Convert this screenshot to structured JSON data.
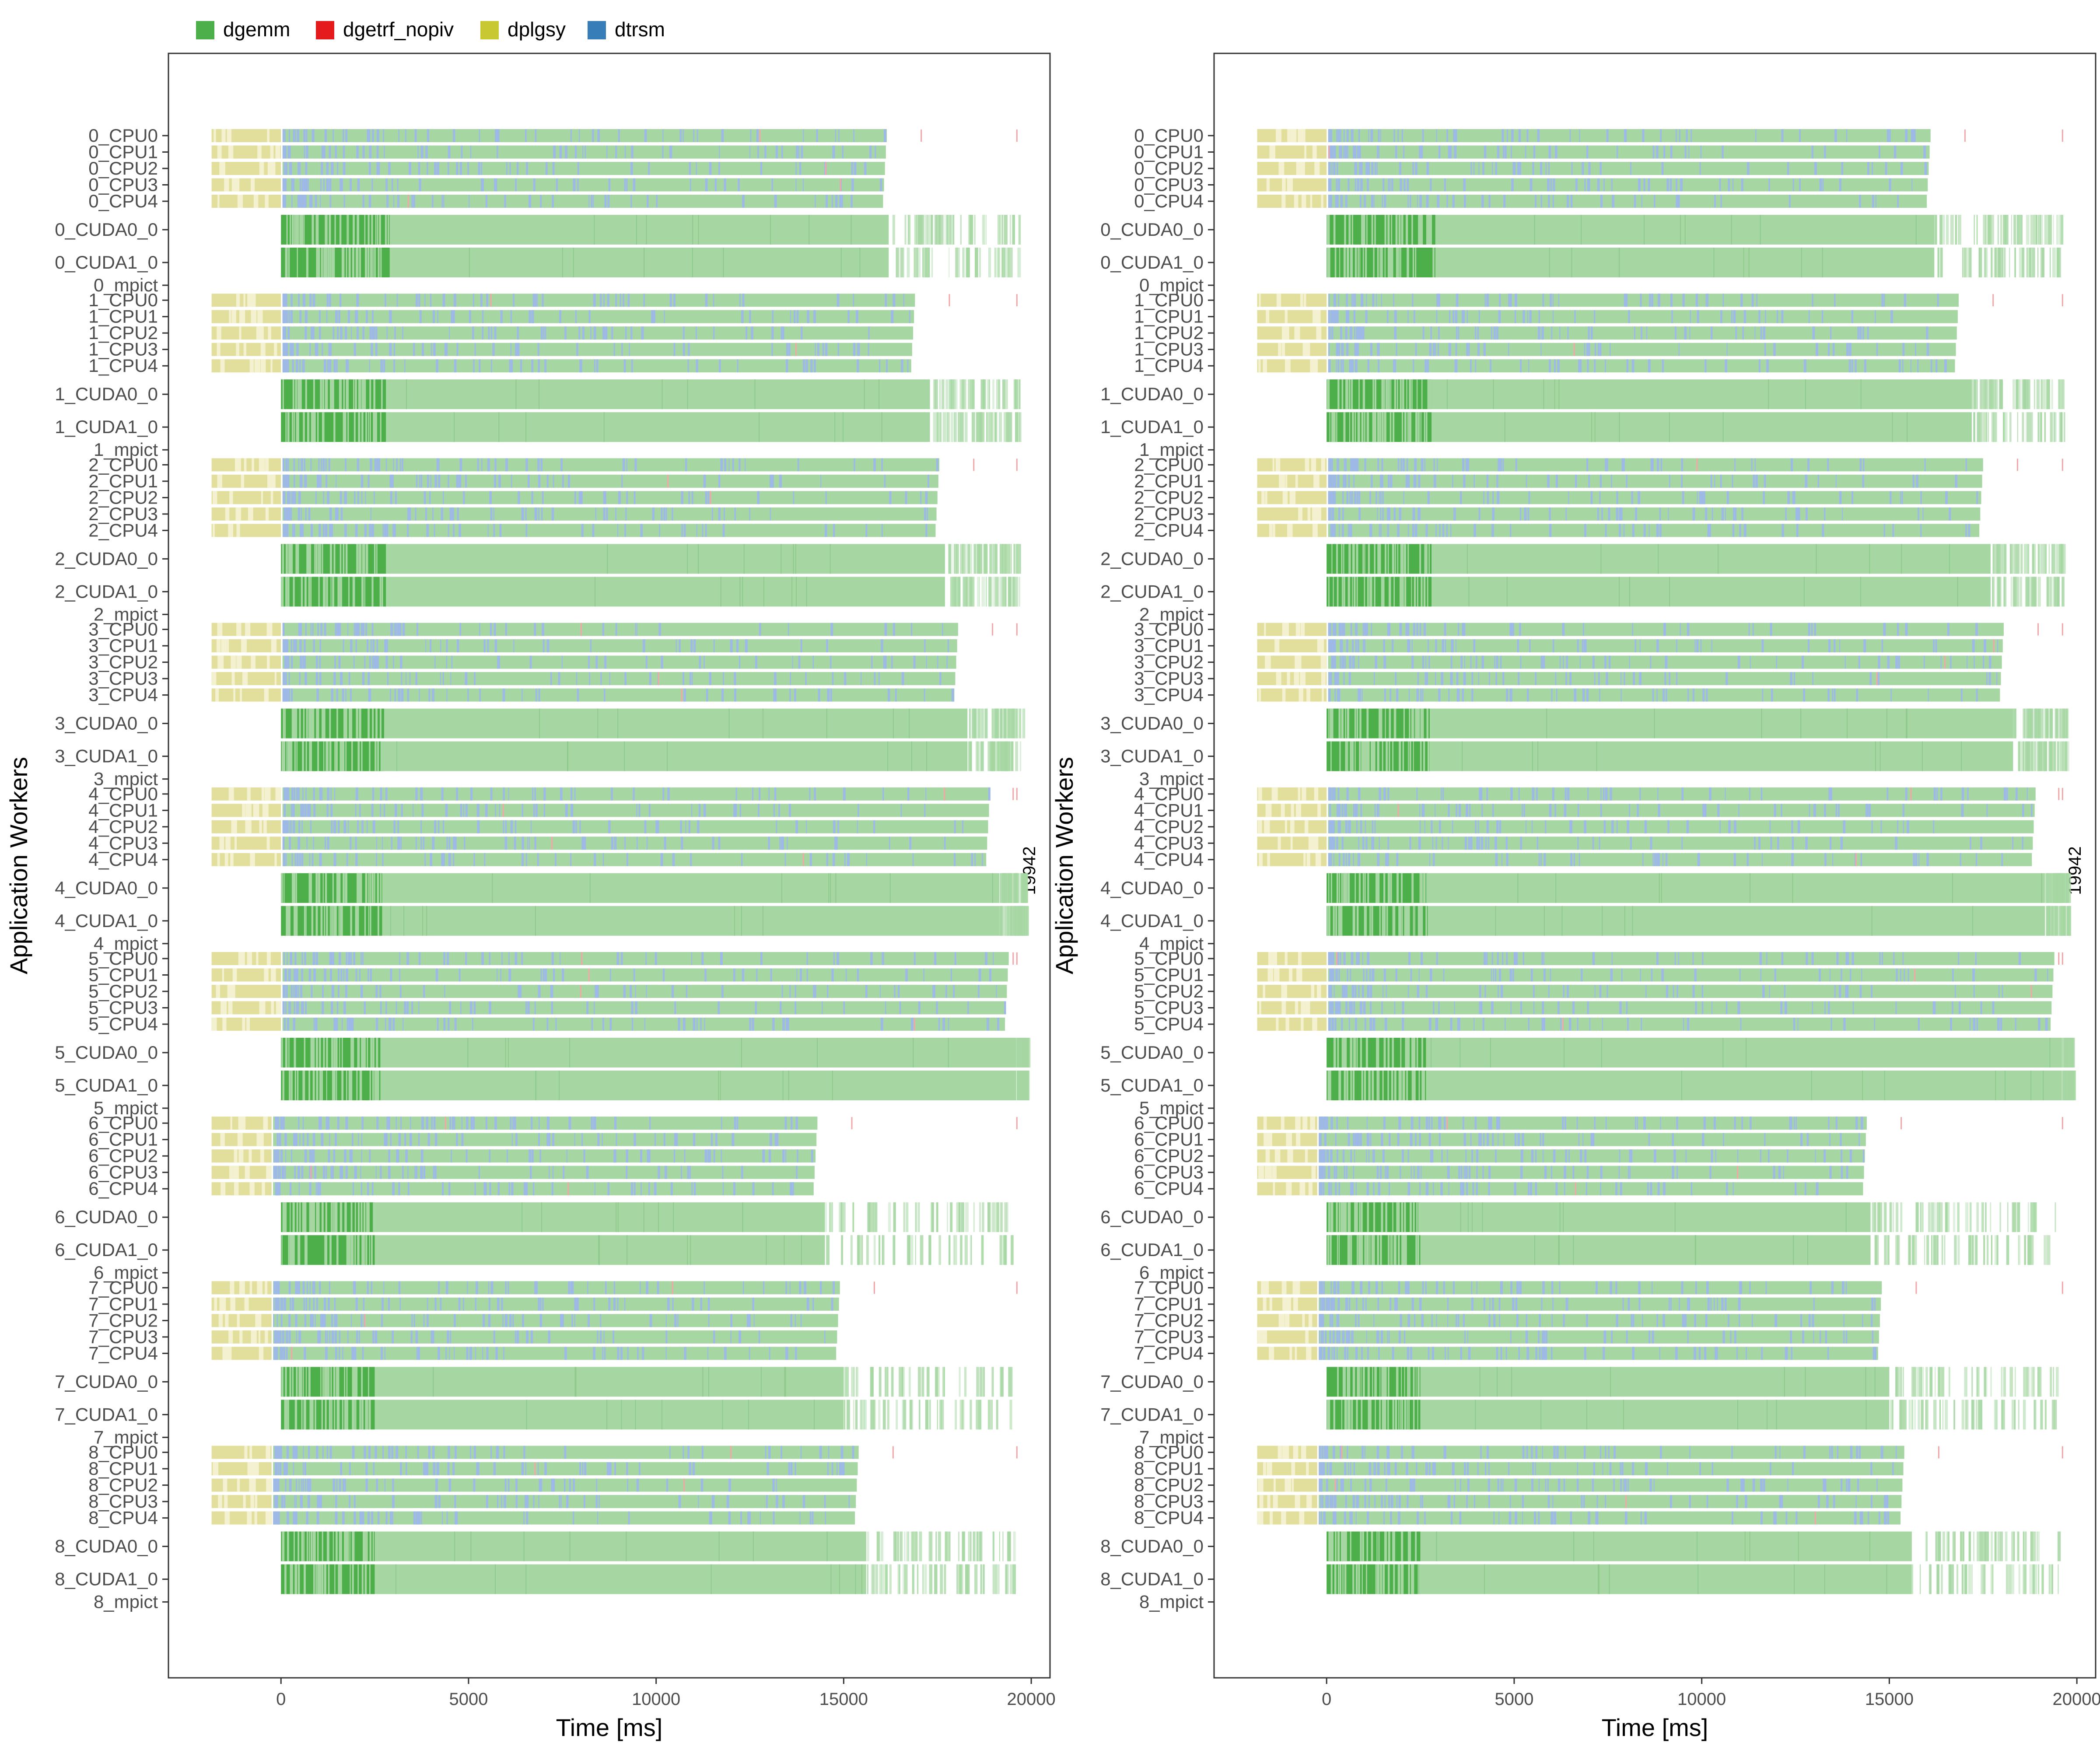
{
  "legend": {
    "items": [
      {
        "name": "dgemm",
        "color": "#4daf4a"
      },
      {
        "name": "dgetrf_nopiv",
        "color": "#e41a1c"
      },
      {
        "name": "dplgsy",
        "color": "#c8c832"
      },
      {
        "name": "dtrsm",
        "color": "#377eb8"
      }
    ]
  },
  "chart_data": [
    {
      "type": "gantt",
      "xlabel": "Time [ms]",
      "ylabel": "Application Workers",
      "xlim": [
        -3000,
        20500
      ],
      "xticks": [
        0,
        5000,
        10000,
        15000,
        20000
      ],
      "xtick_labels": [
        "0",
        "5000",
        "10000",
        "15000",
        "20000"
      ],
      "grid": false,
      "legend_position": "top-left",
      "makespan_label": "19942",
      "makespan": 19942,
      "nodes": [
        {
          "id": 0,
          "plgsy_end": 0,
          "gpu_dense_end": 2900,
          "cpu_end": 16150,
          "gpu_solid_end": 16200,
          "gpu_end": 19700
        },
        {
          "id": 1,
          "plgsy_end": 0,
          "gpu_dense_end": 2800,
          "cpu_end": 16900,
          "gpu_solid_end": 17300,
          "gpu_end": 19750
        },
        {
          "id": 2,
          "plgsy_end": 0,
          "gpu_dense_end": 2800,
          "cpu_end": 17550,
          "gpu_solid_end": 17700,
          "gpu_end": 19750
        },
        {
          "id": 3,
          "plgsy_end": 0,
          "gpu_dense_end": 2750,
          "cpu_end": 18050,
          "gpu_solid_end": 18300,
          "gpu_end": 19850
        },
        {
          "id": 4,
          "plgsy_end": 0,
          "gpu_dense_end": 2700,
          "cpu_end": 18900,
          "gpu_solid_end": 19150,
          "gpu_end": 19900
        },
        {
          "id": 5,
          "plgsy_end": 0,
          "gpu_dense_end": 2650,
          "cpu_end": 19400,
          "gpu_solid_end": 19600,
          "gpu_end": 19942
        },
        {
          "id": 6,
          "plgsy_end": -250,
          "gpu_dense_end": 2500,
          "cpu_end": 14300,
          "gpu_solid_end": 14500,
          "gpu_end": 19500
        },
        {
          "id": 7,
          "plgsy_end": -250,
          "gpu_dense_end": 2500,
          "cpu_end": 14900,
          "gpu_solid_end": 15000,
          "gpu_end": 19500
        },
        {
          "id": 8,
          "plgsy_end": -250,
          "gpu_dense_end": 2500,
          "cpu_end": 15400,
          "gpu_solid_end": 15600,
          "gpu_end": 19600
        }
      ]
    },
    {
      "type": "gantt",
      "xlabel": "Time [ms]",
      "ylabel": "Application Workers",
      "xlim": [
        -3000,
        20500
      ],
      "xticks": [
        0,
        5000,
        10000,
        15000,
        20000
      ],
      "xtick_labels": [
        "0",
        "5000",
        "10000",
        "15000",
        "20000"
      ],
      "grid": false,
      "legend_position": "top-left",
      "makespan_label": "19942",
      "makespan": 19942,
      "nodes": [
        {
          "id": 0,
          "plgsy_end": 0,
          "gpu_dense_end": 2900,
          "cpu_end": 16100,
          "gpu_solid_end": 16200,
          "gpu_end": 19600
        },
        {
          "id": 1,
          "plgsy_end": 0,
          "gpu_dense_end": 2800,
          "cpu_end": 16850,
          "gpu_solid_end": 17200,
          "gpu_end": 19700
        },
        {
          "id": 2,
          "plgsy_end": 0,
          "gpu_dense_end": 2800,
          "cpu_end": 17500,
          "gpu_solid_end": 17700,
          "gpu_end": 19700
        },
        {
          "id": 3,
          "plgsy_end": 0,
          "gpu_dense_end": 2750,
          "cpu_end": 18050,
          "gpu_solid_end": 18300,
          "gpu_end": 19800
        },
        {
          "id": 4,
          "plgsy_end": 0,
          "gpu_dense_end": 2700,
          "cpu_end": 18900,
          "gpu_solid_end": 19150,
          "gpu_end": 19850
        },
        {
          "id": 5,
          "plgsy_end": 0,
          "gpu_dense_end": 2650,
          "cpu_end": 19400,
          "gpu_solid_end": 19600,
          "gpu_end": 19942
        },
        {
          "id": 6,
          "plgsy_end": -250,
          "gpu_dense_end": 2500,
          "cpu_end": 14400,
          "gpu_solid_end": 14500,
          "gpu_end": 19500
        },
        {
          "id": 7,
          "plgsy_end": -250,
          "gpu_dense_end": 2500,
          "cpu_end": 14800,
          "gpu_solid_end": 15000,
          "gpu_end": 19500
        },
        {
          "id": 8,
          "plgsy_end": -250,
          "gpu_dense_end": 2500,
          "cpu_end": 15400,
          "gpu_solid_end": 15600,
          "gpu_end": 19550
        }
      ]
    }
  ]
}
